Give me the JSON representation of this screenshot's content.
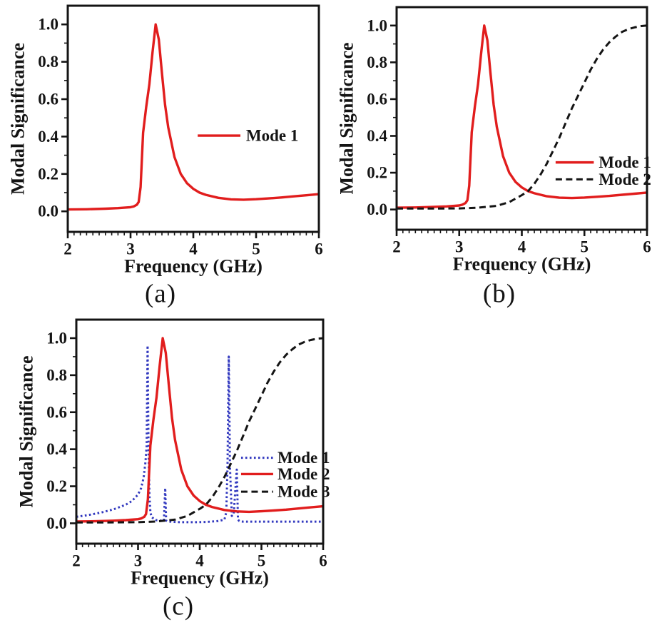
{
  "figure": {
    "axis_color": "#141414",
    "background": "#ffffff",
    "red": "#e11d1d",
    "blue": "#3239bf",
    "black": "#141414"
  },
  "chart_data": [
    {
      "id": "a",
      "type": "line",
      "caption": "(a)",
      "xlabel": "Frequency (GHz)",
      "ylabel": "Modal Significance",
      "xlim": [
        2,
        6
      ],
      "ylim": [
        -0.11,
        1.1
      ],
      "xticks": [
        2,
        3,
        4,
        5,
        6
      ],
      "xtick_labels": [
        "2",
        "3",
        "4",
        "5",
        "6"
      ],
      "yticks": [
        0.0,
        0.2,
        0.4,
        0.6,
        0.8,
        1.0
      ],
      "ytick_labels": [
        "0.0",
        "0.2",
        "0.4",
        "0.6",
        "0.8",
        "1.0"
      ],
      "x_minor_step": 0.1,
      "y_minor_step": 0.1,
      "grid": false,
      "series": [
        {
          "name": "Mode 1",
          "color": "#e11d1d",
          "style": "solid",
          "x": [
            2.0,
            2.3,
            2.6,
            2.8,
            3.0,
            3.05,
            3.1,
            3.13,
            3.16,
            3.2,
            3.25,
            3.3,
            3.35,
            3.4,
            3.45,
            3.5,
            3.55,
            3.6,
            3.7,
            3.8,
            3.9,
            4.0,
            4.1,
            4.2,
            4.4,
            4.6,
            4.8,
            5.0,
            5.2,
            5.4,
            5.6,
            5.8,
            6.0
          ],
          "y": [
            0.01,
            0.011,
            0.014,
            0.017,
            0.022,
            0.026,
            0.035,
            0.05,
            0.13,
            0.42,
            0.56,
            0.68,
            0.85,
            1.0,
            0.92,
            0.74,
            0.57,
            0.45,
            0.29,
            0.2,
            0.15,
            0.12,
            0.1,
            0.088,
            0.072,
            0.064,
            0.062,
            0.065,
            0.069,
            0.074,
            0.08,
            0.086,
            0.092
          ]
        }
      ],
      "legend": {
        "position": "middle-right",
        "line_x": [
          4.07,
          4.75
        ],
        "text_x": 4.84,
        "rows": [
          {
            "label": "Mode 1",
            "series": 0,
            "y": 0.405
          }
        ]
      }
    },
    {
      "id": "b",
      "type": "line",
      "caption": "(b)",
      "xlabel": "Frequency (GHz)",
      "ylabel": "Modal Significance",
      "xlim": [
        2,
        6
      ],
      "ylim": [
        -0.11,
        1.1
      ],
      "xticks": [
        2,
        3,
        4,
        5,
        6
      ],
      "xtick_labels": [
        "2",
        "3",
        "4",
        "5",
        "6"
      ],
      "yticks": [
        0.0,
        0.2,
        0.4,
        0.6,
        0.8,
        1.0
      ],
      "ytick_labels": [
        "0.0",
        "0.2",
        "0.4",
        "0.6",
        "0.8",
        "1.0"
      ],
      "x_minor_step": 0.1,
      "y_minor_step": 0.1,
      "grid": false,
      "series": [
        {
          "name": "Mode 1",
          "color": "#e11d1d",
          "style": "solid",
          "x": [
            2.0,
            2.3,
            2.6,
            2.8,
            3.0,
            3.05,
            3.1,
            3.13,
            3.16,
            3.2,
            3.25,
            3.3,
            3.35,
            3.4,
            3.45,
            3.5,
            3.55,
            3.6,
            3.7,
            3.8,
            3.9,
            4.0,
            4.1,
            4.2,
            4.4,
            4.6,
            4.8,
            5.0,
            5.2,
            5.4,
            5.6,
            5.8,
            6.0
          ],
          "y": [
            0.01,
            0.011,
            0.014,
            0.017,
            0.022,
            0.026,
            0.035,
            0.05,
            0.13,
            0.42,
            0.56,
            0.68,
            0.85,
            1.0,
            0.92,
            0.74,
            0.57,
            0.45,
            0.29,
            0.2,
            0.15,
            0.12,
            0.1,
            0.088,
            0.072,
            0.064,
            0.062,
            0.065,
            0.069,
            0.074,
            0.08,
            0.086,
            0.092
          ]
        },
        {
          "name": "Mode 2",
          "color": "#141414",
          "style": "dashed",
          "x": [
            2.0,
            2.5,
            3.0,
            3.3,
            3.6,
            3.8,
            4.0,
            4.1,
            4.2,
            4.3,
            4.4,
            4.5,
            4.6,
            4.7,
            4.8,
            4.9,
            5.0,
            5.1,
            5.2,
            5.3,
            5.4,
            5.5,
            5.6,
            5.7,
            5.8,
            5.9,
            6.0
          ],
          "y": [
            0.005,
            0.005,
            0.006,
            0.01,
            0.02,
            0.04,
            0.078,
            0.1,
            0.14,
            0.19,
            0.25,
            0.32,
            0.39,
            0.47,
            0.55,
            0.62,
            0.69,
            0.76,
            0.82,
            0.87,
            0.91,
            0.94,
            0.965,
            0.98,
            0.99,
            0.997,
            1.0
          ]
        }
      ],
      "legend": {
        "position": "middle-right",
        "line_x": [
          4.54,
          5.15
        ],
        "text_x": 5.23,
        "rows": [
          {
            "label": "Mode 1",
            "series": 0,
            "y": 0.256
          },
          {
            "label": "Mode 2",
            "series": 1,
            "y": 0.164
          }
        ]
      }
    },
    {
      "id": "c",
      "type": "line",
      "caption": "(c)",
      "xlabel": "Frequency (GHz)",
      "ylabel": "Modal Significance",
      "xlim": [
        2,
        6
      ],
      "ylim": [
        -0.11,
        1.1
      ],
      "xticks": [
        2,
        3,
        4,
        5,
        6
      ],
      "xtick_labels": [
        "2",
        "3",
        "4",
        "5",
        "6"
      ],
      "yticks": [
        0.0,
        0.2,
        0.4,
        0.6,
        0.8,
        1.0
      ],
      "ytick_labels": [
        "0.0",
        "0.2",
        "0.4",
        "0.6",
        "0.8",
        "1.0"
      ],
      "x_minor_step": 0.1,
      "y_minor_step": 0.1,
      "grid": false,
      "series": [
        {
          "name": "Mode 1",
          "color": "#3239bf",
          "style": "dotted",
          "x": [
            2.0,
            2.2,
            2.4,
            2.6,
            2.8,
            2.9,
            3.0,
            3.05,
            3.09,
            3.12,
            3.14,
            3.155,
            3.17,
            3.185,
            3.2,
            3.22,
            3.26,
            3.31,
            3.38,
            3.42,
            3.44,
            3.455,
            3.47,
            3.5,
            3.56,
            3.7,
            3.9,
            4.1,
            4.3,
            4.4,
            4.43,
            4.45,
            4.47,
            4.49,
            4.52,
            4.55,
            4.6,
            4.62,
            4.64,
            4.66,
            4.7,
            4.8,
            5.0,
            5.5,
            6.0
          ],
          "y": [
            0.035,
            0.045,
            0.058,
            0.075,
            0.1,
            0.12,
            0.155,
            0.19,
            0.245,
            0.33,
            0.42,
            0.96,
            0.4,
            0.15,
            0.06,
            0.035,
            0.022,
            0.016,
            0.014,
            0.014,
            0.19,
            0.015,
            0.012,
            0.01,
            0.008,
            0.006,
            0.006,
            0.007,
            0.012,
            0.02,
            0.06,
            0.3,
            0.9,
            0.3,
            0.04,
            0.05,
            0.29,
            0.02,
            0.012,
            0.01,
            0.009,
            0.009,
            0.009,
            0.009,
            0.009
          ]
        },
        {
          "name": "Mode 2",
          "color": "#e11d1d",
          "style": "solid",
          "x": [
            2.0,
            2.3,
            2.6,
            2.8,
            3.0,
            3.05,
            3.1,
            3.13,
            3.16,
            3.2,
            3.25,
            3.3,
            3.35,
            3.4,
            3.45,
            3.5,
            3.55,
            3.6,
            3.7,
            3.8,
            3.9,
            4.0,
            4.1,
            4.2,
            4.4,
            4.6,
            4.8,
            5.0,
            5.2,
            5.4,
            5.6,
            5.8,
            6.0
          ],
          "y": [
            0.01,
            0.011,
            0.014,
            0.017,
            0.022,
            0.026,
            0.035,
            0.05,
            0.13,
            0.42,
            0.56,
            0.68,
            0.85,
            1.0,
            0.92,
            0.74,
            0.57,
            0.45,
            0.29,
            0.2,
            0.15,
            0.12,
            0.1,
            0.088,
            0.072,
            0.064,
            0.062,
            0.065,
            0.069,
            0.074,
            0.08,
            0.086,
            0.092
          ]
        },
        {
          "name": "Mode 3",
          "color": "#141414",
          "style": "dashed",
          "x": [
            2.0,
            2.5,
            3.0,
            3.3,
            3.6,
            3.8,
            4.0,
            4.1,
            4.2,
            4.3,
            4.4,
            4.5,
            4.6,
            4.7,
            4.8,
            4.9,
            5.0,
            5.1,
            5.2,
            5.3,
            5.4,
            5.5,
            5.6,
            5.7,
            5.8,
            5.9,
            6.0
          ],
          "y": [
            0.005,
            0.005,
            0.006,
            0.01,
            0.02,
            0.04,
            0.078,
            0.1,
            0.14,
            0.19,
            0.25,
            0.32,
            0.39,
            0.47,
            0.55,
            0.62,
            0.69,
            0.76,
            0.82,
            0.87,
            0.91,
            0.94,
            0.965,
            0.98,
            0.99,
            0.997,
            1.0
          ]
        }
      ],
      "legend": {
        "position": "middle-right",
        "line_x": [
          4.67,
          5.19
        ],
        "text_x": 5.26,
        "rows": [
          {
            "label": "Mode 1",
            "series": 0,
            "y": 0.354
          },
          {
            "label": "Mode 2",
            "series": 1,
            "y": 0.266
          },
          {
            "label": "Mode 3",
            "series": 2,
            "y": 0.171
          }
        ]
      }
    }
  ]
}
